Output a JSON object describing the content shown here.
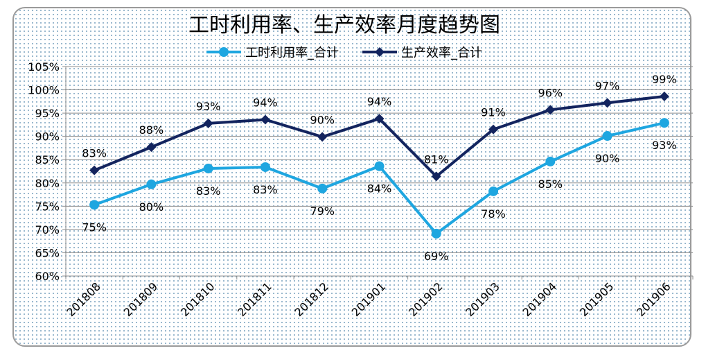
{
  "chart_data": {
    "type": "line",
    "title": "工时利用率、生产效率月度趋势图",
    "categories": [
      "201808",
      "201809",
      "201810",
      "201811",
      "201812",
      "201901",
      "201902",
      "201903",
      "201904",
      "201905",
      "201906"
    ],
    "series": [
      {
        "name": "工时利用率_合计",
        "color": "#1ea6e0",
        "marker": "circle",
        "values": [
          75.3,
          79.7,
          83.1,
          83.4,
          78.8,
          83.6,
          69.1,
          78.2,
          84.6,
          90.1,
          92.9
        ],
        "labels": [
          "75%",
          "80%",
          "83%",
          "83%",
          "79%",
          "84%",
          "69%",
          "78%",
          "85%",
          "90%",
          "93%"
        ],
        "label_position": [
          "below",
          "below",
          "below",
          "below",
          "below",
          "below",
          "below",
          "below",
          "below",
          "below",
          "below"
        ]
      },
      {
        "name": "生产效率_合计",
        "color": "#13245e",
        "marker": "diamond",
        "values": [
          82.7,
          87.7,
          92.8,
          93.6,
          89.9,
          93.8,
          81.4,
          91.5,
          95.7,
          97.2,
          98.6
        ],
        "labels": [
          "83%",
          "88%",
          "93%",
          "94%",
          "90%",
          "94%",
          "81%",
          "91%",
          "96%",
          "97%",
          "99%"
        ],
        "label_position": [
          "above",
          "above",
          "above",
          "above",
          "above",
          "above",
          "above",
          "above",
          "above",
          "above",
          "above"
        ]
      }
    ],
    "ylim": [
      60,
      105
    ],
    "yticks": [
      60,
      65,
      70,
      75,
      80,
      85,
      90,
      95,
      100,
      105
    ],
    "ytick_labels": [
      "60%",
      "65%",
      "70%",
      "75%",
      "80%",
      "85%",
      "90%",
      "95%",
      "100%",
      "105%"
    ],
    "grid": true,
    "legend_position": "top-center"
  }
}
